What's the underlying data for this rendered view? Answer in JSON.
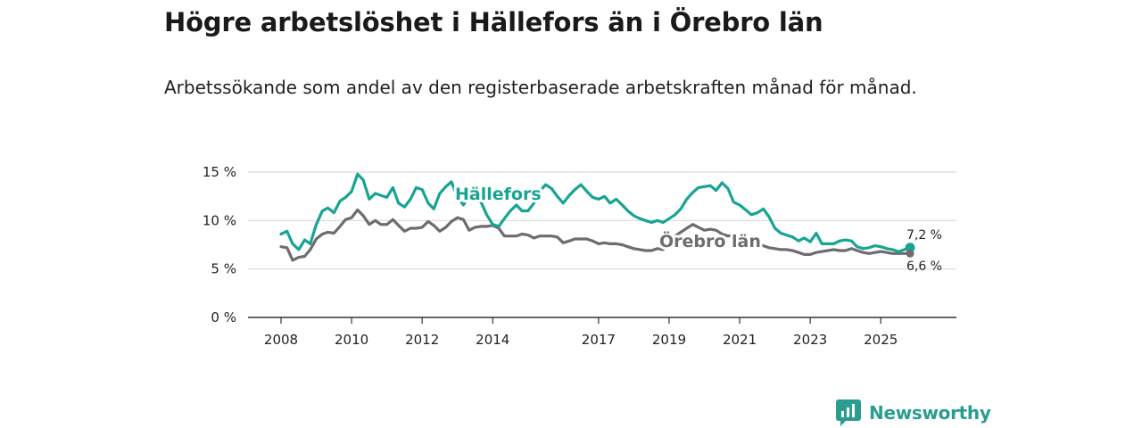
{
  "title": "Högre arbetslöshet i Hällefors än i Örebro län",
  "subtitle": "Arbetssökande som andel av den registerbaserade arbetskraften månad för månad.",
  "brand": {
    "name": "Newsworthy",
    "icon": "newsworthy-logo-icon"
  },
  "colors": {
    "hallefors": "#17a493",
    "orebro": "#6f6b70",
    "grid": "#d9d9d9",
    "axis": "#333333"
  },
  "chart_data": {
    "type": "line",
    "title": "Högre arbetslöshet i Hällefors än i Örebro län",
    "xlabel": "",
    "ylabel": "",
    "ylim": [
      0,
      15
    ],
    "xlim": [
      2007.9,
      2026.3
    ],
    "yticks": [
      0,
      5,
      10,
      15
    ],
    "ytick_labels": [
      "0 %",
      "5 %",
      "10 %",
      "15 %"
    ],
    "xticks": [
      2008,
      2010,
      2012,
      2014,
      2017,
      2019,
      2021,
      2023,
      2025
    ],
    "xtick_labels": [
      "2008",
      "2010",
      "2012",
      "2014",
      "2017",
      "2019",
      "2021",
      "2023",
      "2025"
    ],
    "grid": true,
    "series": [
      {
        "name": "Hällefors",
        "color": "#17a493",
        "end_label": "7,2 %",
        "x": [
          2008.0,
          2008.17,
          2008.33,
          2008.5,
          2008.67,
          2008.83,
          2009.0,
          2009.17,
          2009.33,
          2009.5,
          2009.67,
          2009.83,
          2010.0,
          2010.17,
          2010.33,
          2010.5,
          2010.67,
          2010.83,
          2011.0,
          2011.17,
          2011.33,
          2011.5,
          2011.67,
          2011.83,
          2012.0,
          2012.17,
          2012.33,
          2012.5,
          2012.67,
          2012.83,
          2013.0,
          2013.17,
          2013.33,
          2013.5,
          2013.67,
          2013.83,
          2014.0,
          2014.17,
          2014.33,
          2014.5,
          2014.67,
          2014.83,
          2015.0,
          2015.17,
          2015.33,
          2015.5,
          2015.67,
          2015.83,
          2016.0,
          2016.17,
          2016.33,
          2016.5,
          2016.67,
          2016.83,
          2017.0,
          2017.17,
          2017.33,
          2017.5,
          2017.67,
          2017.83,
          2018.0,
          2018.17,
          2018.33,
          2018.5,
          2018.67,
          2018.83,
          2019.0,
          2019.17,
          2019.33,
          2019.5,
          2019.67,
          2019.83,
          2020.0,
          2020.17,
          2020.33,
          2020.5,
          2020.67,
          2020.83,
          2021.0,
          2021.17,
          2021.33,
          2021.5,
          2021.67,
          2021.83,
          2022.0,
          2022.17,
          2022.33,
          2022.5,
          2022.67,
          2022.83,
          2023.0,
          2023.17,
          2023.33,
          2023.5,
          2023.67,
          2023.83,
          2024.0,
          2024.17,
          2024.33,
          2024.5,
          2024.67,
          2024.83,
          2025.0,
          2025.17,
          2025.33,
          2025.5,
          2025.67,
          2025.83
        ],
        "values": [
          8.6,
          8.9,
          7.6,
          7.0,
          8.0,
          7.6,
          9.6,
          11.0,
          11.3,
          10.8,
          12.0,
          12.4,
          13.0,
          14.8,
          14.2,
          12.2,
          12.8,
          12.6,
          12.4,
          13.4,
          11.8,
          11.4,
          12.2,
          13.4,
          13.2,
          11.8,
          11.2,
          12.8,
          13.5,
          14.0,
          12.4,
          11.6,
          12.6,
          12.3,
          11.9,
          10.6,
          9.6,
          9.4,
          10.2,
          11.0,
          11.6,
          11.0,
          11.0,
          11.8,
          13.0,
          13.7,
          13.3,
          12.5,
          11.8,
          12.6,
          13.2,
          13.7,
          13.0,
          12.4,
          12.2,
          12.5,
          11.8,
          12.2,
          11.6,
          11.0,
          10.5,
          10.2,
          10.0,
          9.8,
          10.0,
          9.8,
          10.2,
          10.6,
          11.2,
          12.2,
          12.9,
          13.4,
          13.5,
          13.6,
          13.1,
          13.9,
          13.3,
          11.9,
          11.6,
          11.1,
          10.6,
          10.8,
          11.2,
          10.4,
          9.2,
          8.7,
          8.5,
          8.3,
          7.9,
          8.2,
          7.8,
          8.7,
          7.6,
          7.6,
          7.6,
          7.9,
          8.0,
          7.9,
          7.3,
          7.1,
          7.2,
          7.4,
          7.3,
          7.1,
          7.0,
          6.8,
          7.0,
          7.2
        ]
      },
      {
        "name": "Örebro län",
        "color": "#6f6b70",
        "end_label": "6,6 %",
        "x": [
          2008.0,
          2008.17,
          2008.33,
          2008.5,
          2008.67,
          2008.83,
          2009.0,
          2009.17,
          2009.33,
          2009.5,
          2009.67,
          2009.83,
          2010.0,
          2010.17,
          2010.33,
          2010.5,
          2010.67,
          2010.83,
          2011.0,
          2011.17,
          2011.33,
          2011.5,
          2011.67,
          2011.83,
          2012.0,
          2012.17,
          2012.33,
          2012.5,
          2012.67,
          2012.83,
          2013.0,
          2013.17,
          2013.33,
          2013.5,
          2013.67,
          2013.83,
          2014.0,
          2014.17,
          2014.33,
          2014.5,
          2014.67,
          2014.83,
          2015.0,
          2015.17,
          2015.33,
          2015.5,
          2015.67,
          2015.83,
          2016.0,
          2016.17,
          2016.33,
          2016.5,
          2016.67,
          2016.83,
          2017.0,
          2017.17,
          2017.33,
          2017.5,
          2017.67,
          2017.83,
          2018.0,
          2018.17,
          2018.33,
          2018.5,
          2018.67,
          2018.83,
          2019.0,
          2019.17,
          2019.33,
          2019.5,
          2019.67,
          2019.83,
          2020.0,
          2020.17,
          2020.33,
          2020.5,
          2020.67,
          2020.83,
          2021.0,
          2021.17,
          2021.33,
          2021.5,
          2021.67,
          2021.83,
          2022.0,
          2022.17,
          2022.33,
          2022.5,
          2022.67,
          2022.83,
          2023.0,
          2023.17,
          2023.33,
          2023.5,
          2023.67,
          2023.83,
          2024.0,
          2024.17,
          2024.33,
          2024.5,
          2024.67,
          2024.83,
          2025.0,
          2025.17,
          2025.33,
          2025.5,
          2025.67,
          2025.83
        ],
        "values": [
          7.3,
          7.2,
          5.9,
          6.2,
          6.3,
          7.0,
          8.1,
          8.6,
          8.8,
          8.7,
          9.4,
          10.1,
          10.3,
          11.1,
          10.5,
          9.6,
          10.0,
          9.6,
          9.6,
          10.1,
          9.5,
          8.9,
          9.2,
          9.2,
          9.3,
          9.9,
          9.5,
          8.9,
          9.3,
          9.9,
          10.3,
          10.1,
          9.0,
          9.3,
          9.4,
          9.4,
          9.5,
          9.2,
          8.4,
          8.4,
          8.4,
          8.6,
          8.5,
          8.2,
          8.4,
          8.4,
          8.4,
          8.3,
          7.7,
          7.9,
          8.1,
          8.1,
          8.1,
          7.9,
          7.6,
          7.7,
          7.6,
          7.6,
          7.5,
          7.3,
          7.1,
          7.0,
          6.9,
          6.9,
          7.1,
          7.0,
          7.6,
          8.4,
          8.8,
          9.2,
          9.6,
          9.3,
          9.0,
          9.1,
          9.0,
          8.6,
          8.4,
          8.5,
          8.2,
          8.0,
          7.8,
          7.6,
          7.4,
          7.2,
          7.1,
          7.0,
          7.0,
          6.9,
          6.7,
          6.5,
          6.5,
          6.7,
          6.8,
          6.9,
          7.0,
          6.9,
          6.9,
          7.1,
          6.9,
          6.7,
          6.6,
          6.7,
          6.8,
          6.7,
          6.6,
          6.6,
          6.6,
          6.6
        ]
      }
    ]
  }
}
